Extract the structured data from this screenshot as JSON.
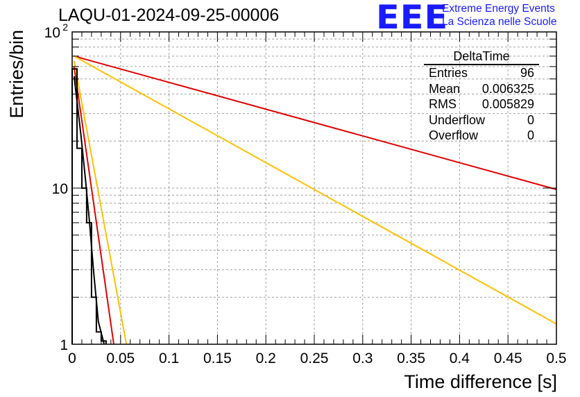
{
  "title": "LAQU-01-2024-09-25-00006",
  "logo": {
    "mark": "EEE",
    "line1": "Extreme Energy Events",
    "line2": "La Scienza nelle Scuole",
    "color": "#1a1aff"
  },
  "stats": {
    "name": "DeltaTime",
    "rows": [
      {
        "label": "Entries",
        "value": "96"
      },
      {
        "label": "Mean",
        "value": "0.006325"
      },
      {
        "label": "RMS",
        "value": "0.005829"
      },
      {
        "label": "Underflow",
        "value": "0"
      },
      {
        "label": "Overflow",
        "value": "0"
      }
    ]
  },
  "chart_data": {
    "type": "line",
    "xlabel": "Time difference [s]",
    "ylabel": "Entries/bin",
    "xlim": [
      0,
      0.5
    ],
    "ylim": [
      1,
      100
    ],
    "yscale": "log",
    "grid": true,
    "x_ticks": [
      "0",
      "0.05",
      "0.1",
      "0.15",
      "0.2",
      "0.25",
      "0.3",
      "0.35",
      "0.4",
      "0.45",
      "0.5"
    ],
    "y_ticks": [
      {
        "value": 1,
        "label": "1"
      },
      {
        "value": 10,
        "label": "10"
      },
      {
        "value": 100,
        "label": "10",
        "exp": "2"
      }
    ],
    "histogram": {
      "color": "#000000",
      "bin_width": 0.005,
      "x": [
        0.0,
        0.005,
        0.01,
        0.015,
        0.02,
        0.025,
        0.03
      ],
      "values": [
        58,
        18,
        10,
        6,
        2,
        1.2,
        1.05
      ]
    },
    "series": [
      {
        "color": "#e00000",
        "x": [
          0.002,
          0.5
        ],
        "y": [
          70,
          9.8
        ]
      },
      {
        "color": "#ffc000",
        "x": [
          0.002,
          0.5
        ],
        "y": [
          70,
          1.35
        ]
      },
      {
        "color": "#e00000",
        "x": [
          0.002,
          0.043
        ],
        "y": [
          60,
          1
        ]
      },
      {
        "color": "#ffc000",
        "x": [
          0.002,
          0.056
        ],
        "y": [
          65,
          1
        ]
      },
      {
        "color": "#000000",
        "x": [
          0.002,
          0.009,
          0.014,
          0.018,
          0.022,
          0.027,
          0.033
        ],
        "y": [
          52,
          22,
          11,
          6,
          3,
          1.4,
          1
        ]
      }
    ]
  }
}
